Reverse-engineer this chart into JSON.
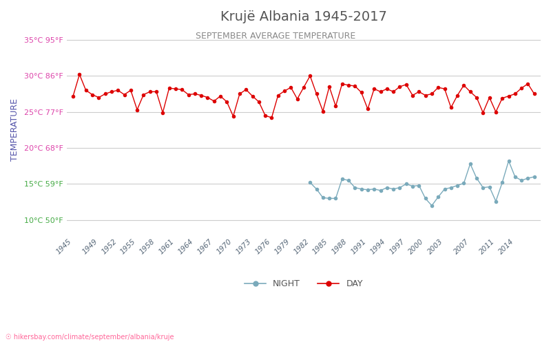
{
  "title": "Krujë Albania 1945-2017",
  "subtitle": "SEPTEMBER AVERAGE TEMPERATURE",
  "ylabel": "TEMPERATURE",
  "url_text": "hikersbay.com/climate/september/albania/kruje",
  "bg_color": "#ffffff",
  "grid_color": "#cccccc",
  "title_color": "#555555",
  "subtitle_color": "#888888",
  "ylabel_color": "#5555aa",
  "ytick_color_green": "#44aa44",
  "ytick_color_pink": "#dd44aa",
  "day_color": "#dd0000",
  "night_color": "#7aaabb",
  "years": [
    1945,
    1946,
    1947,
    1948,
    1949,
    1950,
    1951,
    1952,
    1953,
    1954,
    1955,
    1956,
    1957,
    1958,
    1959,
    1960,
    1961,
    1962,
    1963,
    1964,
    1965,
    1966,
    1967,
    1968,
    1969,
    1970,
    1971,
    1972,
    1973,
    1974,
    1975,
    1976,
    1977,
    1978,
    1979,
    1980,
    1981,
    1982,
    1983,
    1984,
    1985,
    1986,
    1987,
    1988,
    1989,
    1990,
    1991,
    1992,
    1993,
    1994,
    1995,
    1996,
    1997,
    1998,
    1999,
    2000,
    2001,
    2002,
    2003,
    2004,
    2005,
    2006,
    2007,
    2008,
    2009,
    2010,
    2011,
    2012,
    2013,
    2014,
    2015,
    2016,
    2017
  ],
  "day_temps": [
    27.2,
    30.2,
    28.0,
    27.4,
    27.0,
    27.5,
    27.8,
    28.0,
    27.4,
    28.0,
    25.3,
    27.4,
    27.8,
    27.8,
    24.9,
    28.3,
    28.2,
    28.1,
    27.4,
    27.5,
    27.3,
    27.0,
    26.5,
    27.2,
    26.4,
    24.4,
    27.5,
    28.1,
    27.2,
    26.4,
    24.5,
    24.2,
    27.3,
    27.9,
    28.4,
    26.8,
    28.4,
    30.0,
    27.5,
    25.1,
    28.5,
    25.8,
    28.9,
    28.7,
    28.6,
    27.7,
    25.4,
    28.2,
    27.8,
    28.2,
    27.8,
    28.5,
    28.8,
    27.3,
    27.8,
    27.3,
    27.5,
    28.4,
    28.2,
    25.6,
    27.3,
    28.7,
    27.8,
    27.0,
    24.9,
    27.0,
    25.0,
    26.9,
    27.2,
    27.5,
    28.3,
    28.9,
    27.5
  ],
  "night_temps": [
    null,
    null,
    null,
    null,
    null,
    null,
    null,
    null,
    null,
    null,
    null,
    null,
    null,
    null,
    null,
    null,
    null,
    null,
    null,
    null,
    null,
    null,
    null,
    null,
    null,
    null,
    null,
    null,
    null,
    null,
    null,
    null,
    null,
    null,
    null,
    null,
    null,
    15.2,
    14.3,
    13.1,
    13.0,
    13.0,
    15.7,
    15.5,
    14.5,
    14.3,
    14.2,
    14.3,
    14.1,
    14.5,
    14.3,
    14.5,
    15.0,
    14.7,
    14.8,
    13.0,
    12.0,
    13.2,
    14.3,
    14.5,
    14.8,
    15.1,
    17.8,
    15.8,
    14.5,
    14.6,
    12.6,
    15.2,
    18.2,
    16.0,
    15.5,
    15.8,
    16.0
  ],
  "ylim_min": 8,
  "ylim_max": 37,
  "yticks_celsius": [
    10,
    15,
    20,
    25,
    30,
    35
  ],
  "yticks_fahrenheit": [
    50,
    59,
    68,
    77,
    86,
    95
  ],
  "xtick_years": [
    1945,
    1949,
    1952,
    1955,
    1958,
    1961,
    1964,
    1967,
    1970,
    1973,
    1976,
    1979,
    1982,
    1985,
    1988,
    1991,
    1994,
    1997,
    2000,
    2003,
    2007,
    2011,
    2014
  ]
}
